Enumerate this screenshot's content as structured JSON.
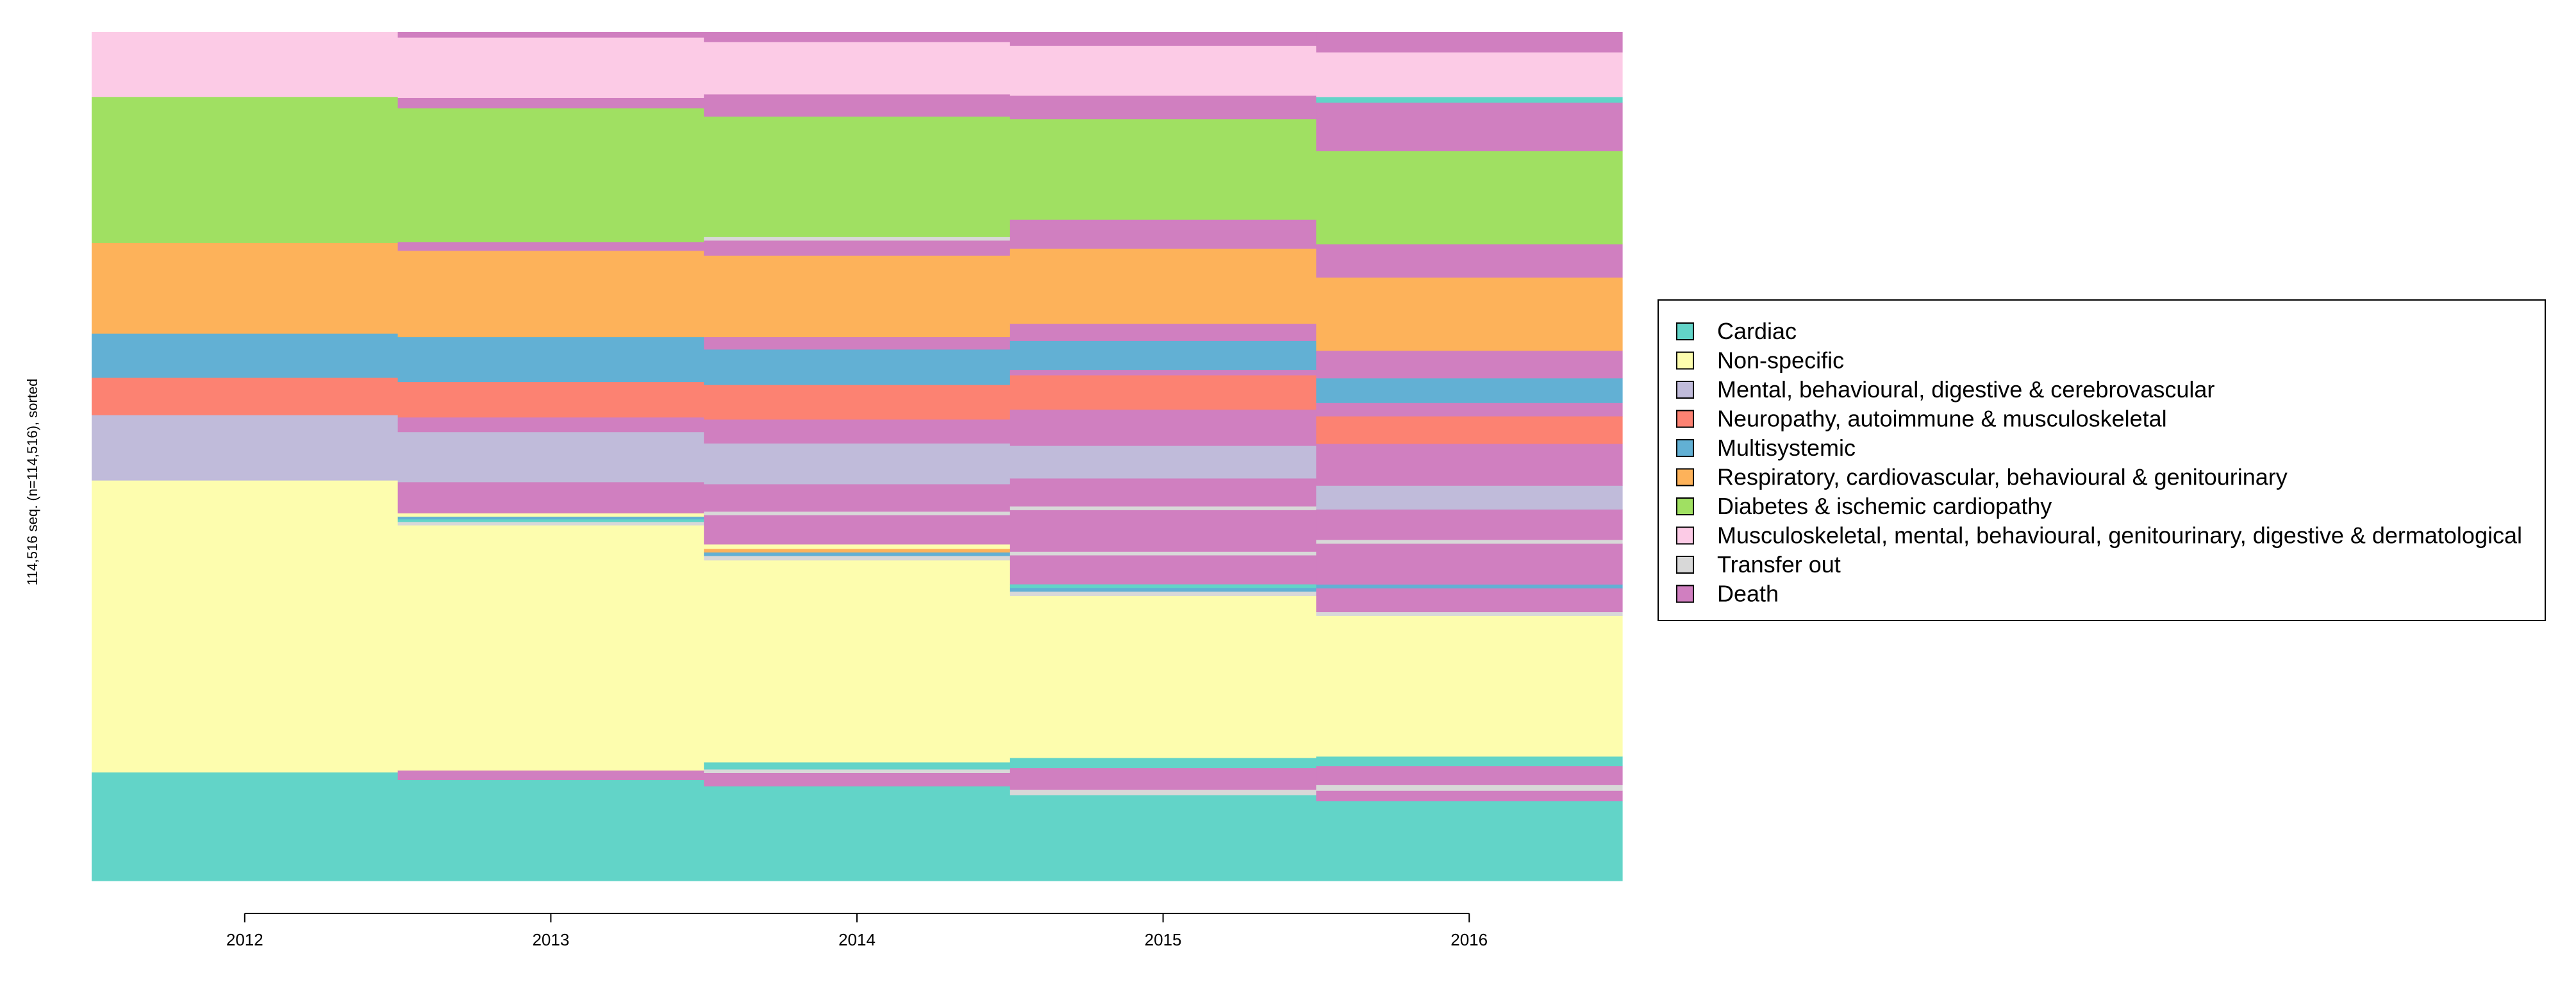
{
  "chart_data": {
    "type": "sequence-index",
    "title": "",
    "ylabel": "114,516 seq. (n=114,516), sorted",
    "xlabel": "",
    "n_sequences": 114516,
    "categories": [
      "2012",
      "2013",
      "2014",
      "2015",
      "2016"
    ],
    "states": [
      {
        "name": "Cardiac",
        "color": "#62D4C8"
      },
      {
        "name": "Non-specific",
        "color": "#FDFDAE"
      },
      {
        "name": "Mental, behavioural, digestive & cerebrovascular",
        "color": "#C0BBDA"
      },
      {
        "name": "Neuropathy, autoimmune & musculoskeletal",
        "color": "#FC8272"
      },
      {
        "name": "Multisystemic",
        "color": "#62B0D4"
      },
      {
        "name": "Respiratory, cardiovascular, behavioural & genitourinary",
        "color": "#FDB25A"
      },
      {
        "name": "Diabetes & ischemic cardiopathy",
        "color": "#A0E062"
      },
      {
        "name": "Musculoskeletal, mental, behavioural, genitourinary, digestive & dermatological",
        "color": "#FCCBE6"
      },
      {
        "name": "Transfer out",
        "color": "#D8D8D8"
      },
      {
        "name": "Death",
        "color": "#D07FC0"
      }
    ],
    "columns": [
      {
        "year": "2012",
        "blocks": [
          [
            "Cardiac",
            12.8
          ],
          [
            "Non-specific",
            34.4
          ],
          [
            "Mental, behavioural, digestive & cerebrovascular",
            7.7
          ],
          [
            "Neuropathy, autoimmune & musculoskeletal",
            4.4
          ],
          [
            "Multisystemic",
            5.2
          ],
          [
            "Respiratory, cardiovascular, behavioural & genitourinary",
            10.7
          ],
          [
            "Diabetes & ischemic cardiopathy",
            17.2
          ],
          [
            "Musculoskeletal, mental, behavioural, genitourinary, digestive & dermatological",
            7.6
          ]
        ]
      },
      {
        "year": "2013",
        "blocks": [
          [
            "Cardiac",
            11.7
          ],
          [
            "Death",
            1.1
          ],
          [
            "Non-specific",
            28.4
          ],
          [
            "Transfer out",
            0.4
          ],
          [
            "Cardiac",
            0.3
          ],
          [
            "Multisystemic",
            0.3
          ],
          [
            "Non-specific",
            0.4
          ],
          [
            "Death",
            3.6
          ],
          [
            "Mental, behavioural, digestive & cerebrovascular",
            5.8
          ],
          [
            "Death",
            1.7
          ],
          [
            "Neuropathy, autoimmune & musculoskeletal",
            4.1
          ],
          [
            "Multisystemic",
            5.2
          ],
          [
            "Respiratory, cardiovascular, behavioural & genitourinary",
            10.0
          ],
          [
            "Death",
            1.0
          ],
          [
            "Diabetes & ischemic cardiopathy",
            15.5
          ],
          [
            "Death",
            1.2
          ],
          [
            "Musculoskeletal, mental, behavioural, genitourinary, digestive & dermatological",
            7.0
          ],
          [
            "Death",
            0.6
          ]
        ]
      },
      {
        "year": "2014",
        "blocks": [
          [
            "Cardiac",
            10.7
          ],
          [
            "Death",
            1.5
          ],
          [
            "Transfer out",
            0.4
          ],
          [
            "Cardiac",
            0.8
          ],
          [
            "Non-specific",
            22.8
          ],
          [
            "Transfer out",
            0.5
          ],
          [
            "Multisystemic",
            0.4
          ],
          [
            "Respiratory, cardiovascular, behavioural & genitourinary",
            0.4
          ],
          [
            "Non-specific",
            0.5
          ],
          [
            "Death",
            3.3
          ],
          [
            "Transfer out",
            0.4
          ],
          [
            "Death",
            3.1
          ],
          [
            "Mental, behavioural, digestive & cerebrovascular",
            4.6
          ],
          [
            "Death",
            2.7
          ],
          [
            "Neuropathy, autoimmune & musculoskeletal",
            3.9
          ],
          [
            "Multisystemic",
            4.0
          ],
          [
            "Death",
            1.4
          ],
          [
            "Respiratory, cardiovascular, behavioural & genitourinary",
            9.2
          ],
          [
            "Death",
            1.7
          ],
          [
            "Transfer out",
            0.4
          ],
          [
            "Diabetes & ischemic cardiopathy",
            13.6
          ],
          [
            "Death",
            2.5
          ],
          [
            "Musculoskeletal, mental, behavioural, genitourinary, digestive & dermatological",
            5.9
          ],
          [
            "Death",
            1.1
          ]
        ]
      },
      {
        "year": "2015",
        "blocks": [
          [
            "Cardiac",
            9.5
          ],
          [
            "Transfer out",
            0.6
          ],
          [
            "Death",
            2.4
          ],
          [
            "Cardiac",
            1.1
          ],
          [
            "Non-specific",
            17.9
          ],
          [
            "Transfer out",
            0.5
          ],
          [
            "Multisystemic",
            0.4
          ],
          [
            "Cardiac",
            0.4
          ],
          [
            "Death",
            3.2
          ],
          [
            "Transfer out",
            0.4
          ],
          [
            "Death",
            4.6
          ],
          [
            "Transfer out",
            0.4
          ],
          [
            "Death",
            3.1
          ],
          [
            "Mental, behavioural, digestive & cerebrovascular",
            3.6
          ],
          [
            "Death",
            4.0
          ],
          [
            "Neuropathy, autoimmune & musculoskeletal",
            3.8
          ],
          [
            "Death",
            0.6
          ],
          [
            "Multisystemic",
            3.2
          ],
          [
            "Death",
            1.9
          ],
          [
            "Respiratory, cardiovascular, behavioural & genitourinary",
            8.3
          ],
          [
            "Death",
            3.2
          ],
          [
            "Diabetes & ischemic cardiopathy",
            11.1
          ],
          [
            "Death",
            2.6
          ],
          [
            "Musculoskeletal, mental, behavioural, genitourinary, digestive & dermatological",
            5.5
          ],
          [
            "Death",
            1.5
          ]
        ]
      },
      {
        "year": "2016",
        "blocks": [
          [
            "Cardiac",
            8.4
          ],
          [
            "Death",
            1.1
          ],
          [
            "Transfer out",
            0.6
          ],
          [
            "Death",
            2.0
          ],
          [
            "Cardiac",
            1.0
          ],
          [
            "Non-specific",
            14.8
          ],
          [
            "Transfer out",
            0.4
          ],
          [
            "Death",
            2.5
          ],
          [
            "Multisystemic",
            0.4
          ],
          [
            "Death",
            4.3
          ],
          [
            "Transfer out",
            0.4
          ],
          [
            "Death",
            3.2
          ],
          [
            "Mental, behavioural, digestive & cerebrovascular",
            2.5
          ],
          [
            "Death",
            4.4
          ],
          [
            "Neuropathy, autoimmune & musculoskeletal",
            2.9
          ],
          [
            "Death",
            1.4
          ],
          [
            "Multisystemic",
            2.6
          ],
          [
            "Death",
            2.9
          ],
          [
            "Respiratory, cardiovascular, behavioural & genitourinary",
            7.7
          ],
          [
            "Death",
            3.5
          ],
          [
            "Diabetes & ischemic cardiopathy",
            9.8
          ],
          [
            "Death",
            5.1
          ],
          [
            "Cardiac",
            0.6
          ],
          [
            "Musculoskeletal, mental, behavioural, genitourinary, digestive & dermatological",
            4.7
          ],
          [
            "Death",
            2.1
          ]
        ]
      }
    ]
  }
}
